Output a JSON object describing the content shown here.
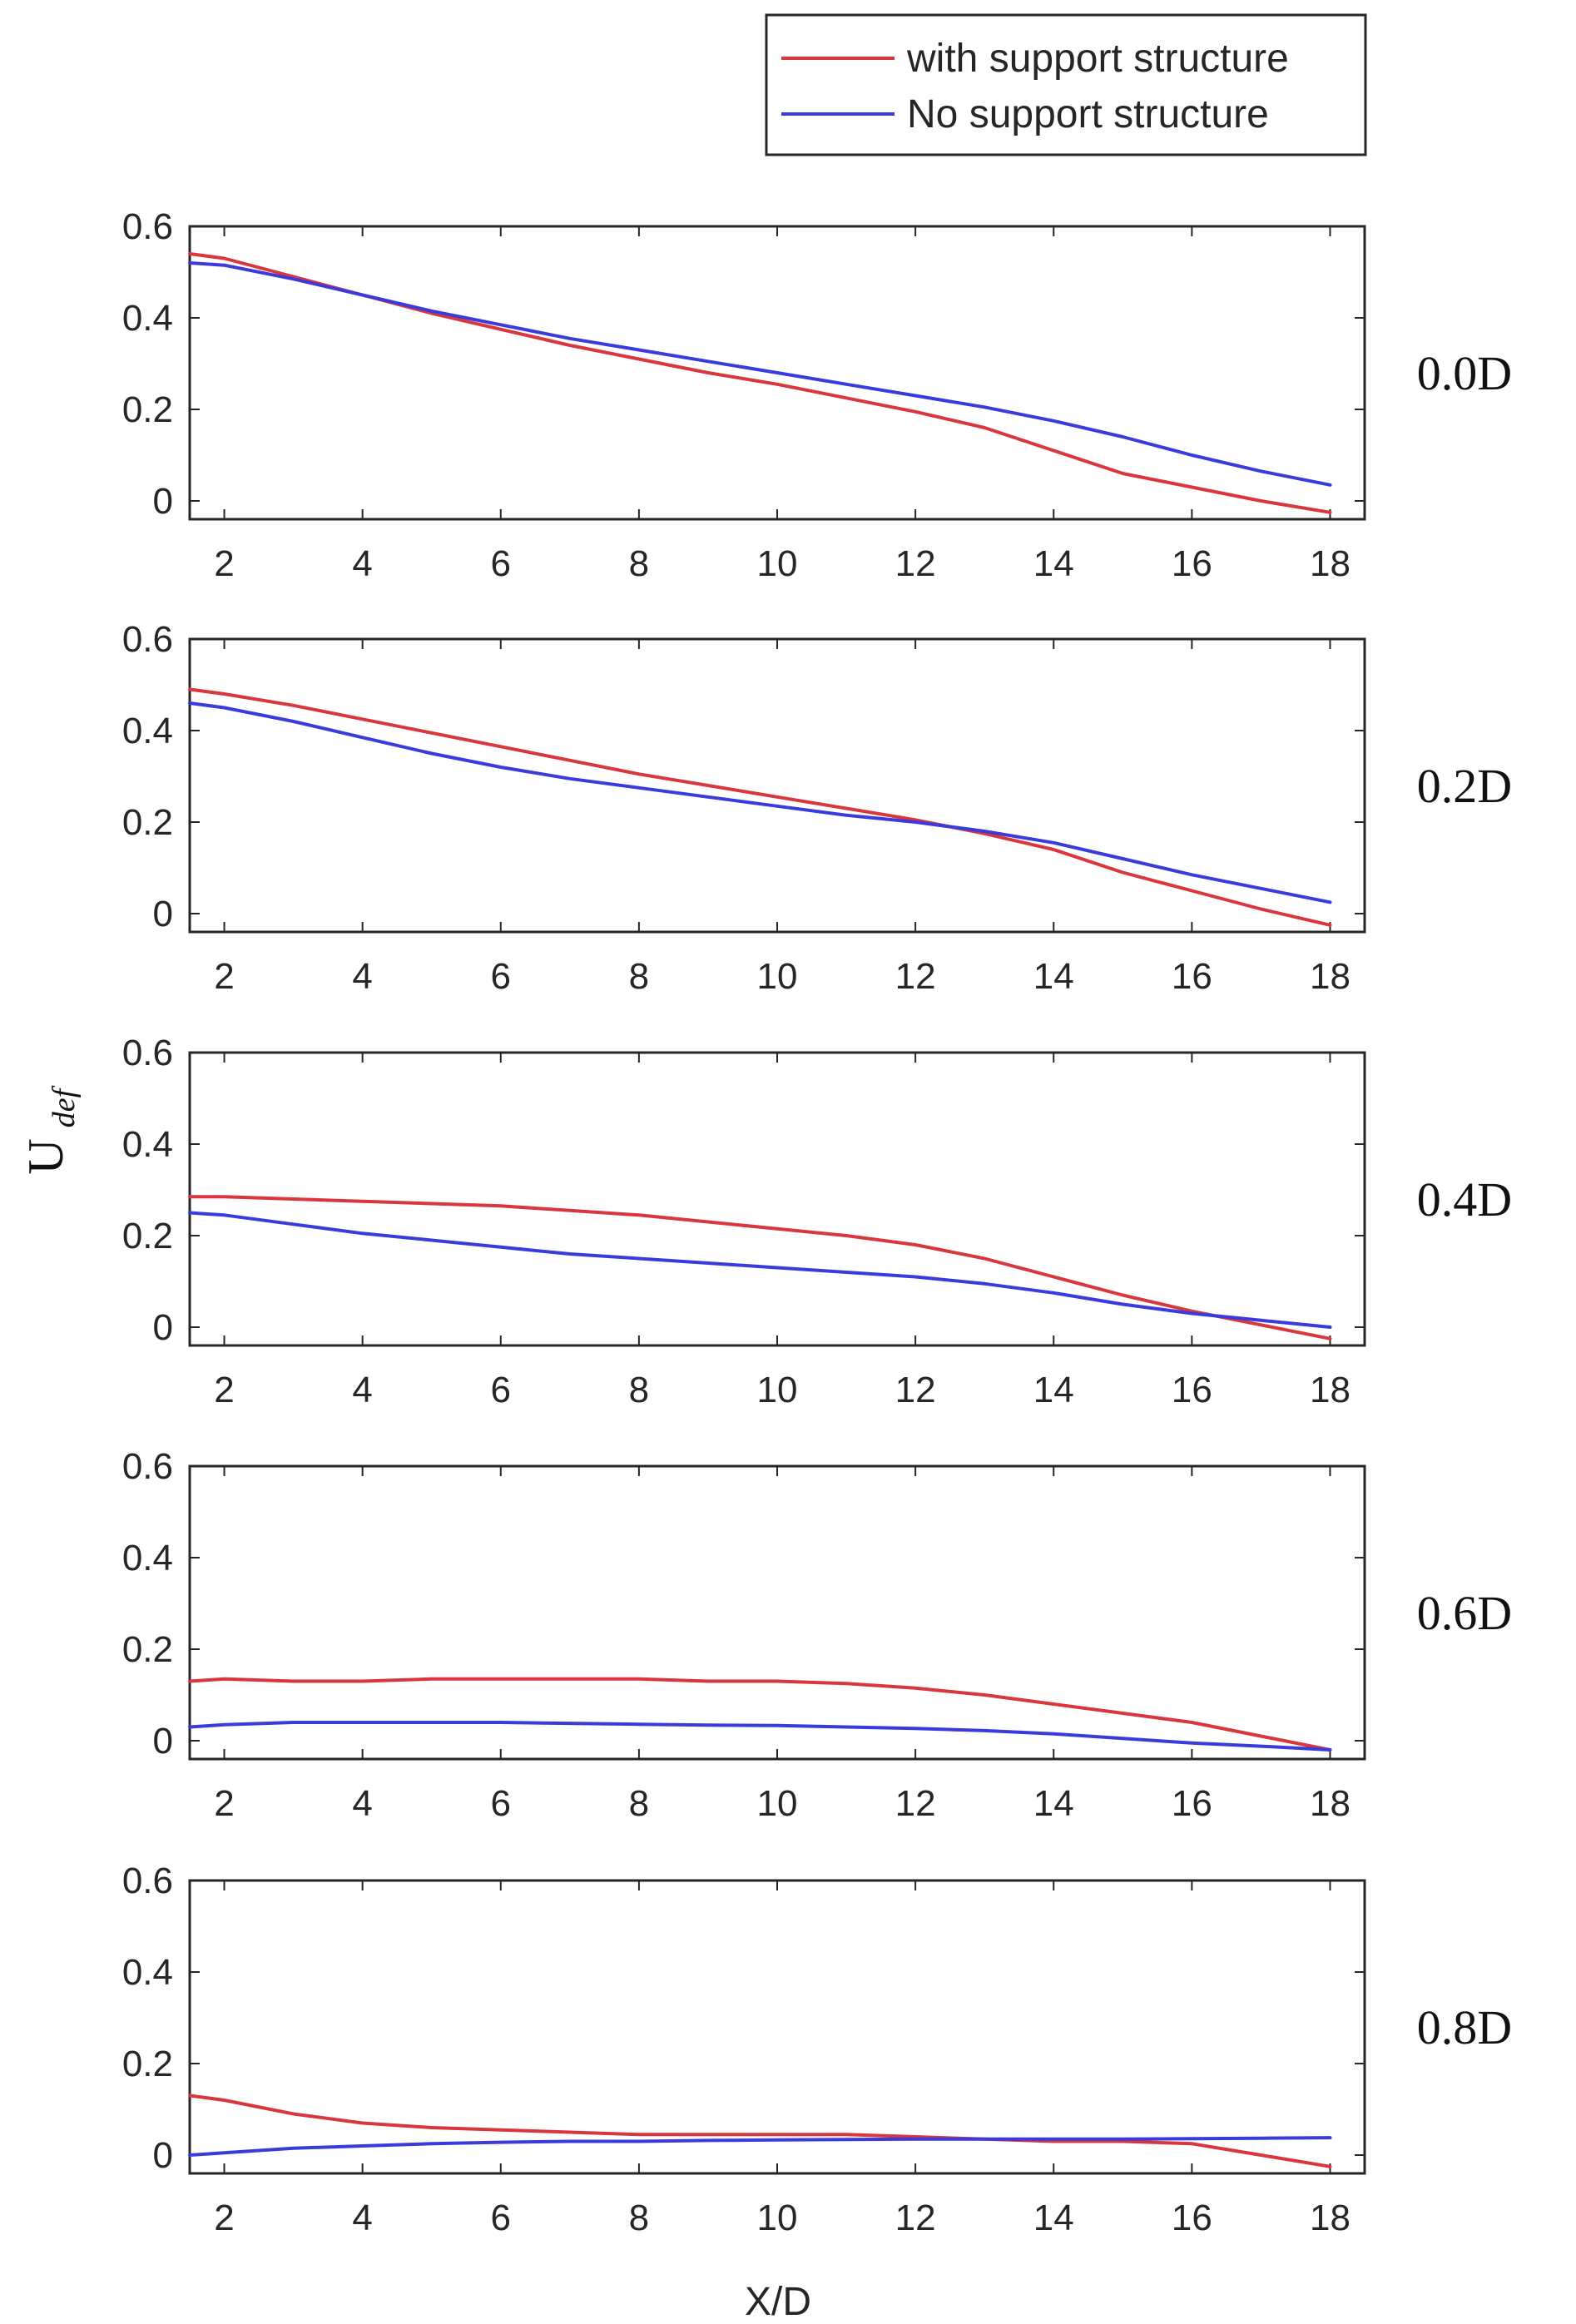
{
  "chart_data": {
    "type": "line",
    "ylabel": "U",
    "ylabel_subscript": "def",
    "xlabel": "X/D",
    "xlim": [
      1.5,
      18.5
    ],
    "ylim": [
      -0.04,
      0.6
    ],
    "xticks": [
      2,
      4,
      6,
      8,
      10,
      12,
      14,
      16,
      18
    ],
    "yticks": [
      0,
      0.2,
      0.4,
      0.6
    ],
    "xtick_labels": [
      "2",
      "4",
      "6",
      "8",
      "10",
      "12",
      "14",
      "16",
      "18"
    ],
    "ytick_labels": [
      "0",
      "0.2",
      "0.4",
      "0.6"
    ],
    "legend": {
      "position": "top-right",
      "entries": [
        {
          "label": "with support structure",
          "color": "#d9363e"
        },
        {
          "label": "No support structure",
          "color": "#3b3bdd"
        }
      ]
    },
    "colors": {
      "with": "#d9363e",
      "without": "#3b3bdd",
      "axis": "#262626"
    },
    "x": [
      1.5,
      2,
      3,
      4,
      5,
      6,
      7,
      8,
      9,
      10,
      11,
      12,
      13,
      14,
      15,
      16,
      17,
      18
    ],
    "panels": [
      {
        "label": "0.0D",
        "series": [
          {
            "name": "with support structure",
            "values": [
              0.54,
              0.53,
              0.49,
              0.45,
              0.41,
              0.375,
              0.34,
              0.31,
              0.28,
              0.255,
              0.225,
              0.195,
              0.16,
              0.11,
              0.06,
              0.03,
              0.0,
              -0.025
            ]
          },
          {
            "name": "No support structure",
            "values": [
              0.52,
              0.515,
              0.485,
              0.45,
              0.415,
              0.385,
              0.355,
              0.33,
              0.305,
              0.28,
              0.255,
              0.23,
              0.205,
              0.175,
              0.14,
              0.1,
              0.065,
              0.035
            ]
          }
        ]
      },
      {
        "label": "0.2D",
        "series": [
          {
            "name": "with support structure",
            "values": [
              0.49,
              0.48,
              0.455,
              0.425,
              0.395,
              0.365,
              0.335,
              0.305,
              0.28,
              0.255,
              0.23,
              0.205,
              0.175,
              0.14,
              0.09,
              0.05,
              0.01,
              -0.025
            ]
          },
          {
            "name": "No support structure",
            "values": [
              0.46,
              0.45,
              0.42,
              0.385,
              0.35,
              0.32,
              0.295,
              0.275,
              0.255,
              0.235,
              0.215,
              0.2,
              0.18,
              0.155,
              0.12,
              0.085,
              0.055,
              0.025
            ]
          }
        ]
      },
      {
        "label": "0.4D",
        "series": [
          {
            "name": "with support structure",
            "values": [
              0.285,
              0.285,
              0.28,
              0.275,
              0.27,
              0.265,
              0.255,
              0.245,
              0.23,
              0.215,
              0.2,
              0.18,
              0.15,
              0.11,
              0.07,
              0.035,
              0.005,
              -0.025
            ]
          },
          {
            "name": "No support structure",
            "values": [
              0.25,
              0.245,
              0.225,
              0.205,
              0.19,
              0.175,
              0.16,
              0.15,
              0.14,
              0.13,
              0.12,
              0.11,
              0.095,
              0.075,
              0.05,
              0.03,
              0.015,
              0.0
            ]
          }
        ]
      },
      {
        "label": "0.6D",
        "series": [
          {
            "name": "with support structure",
            "values": [
              0.13,
              0.135,
              0.13,
              0.13,
              0.135,
              0.135,
              0.135,
              0.135,
              0.13,
              0.13,
              0.125,
              0.115,
              0.1,
              0.08,
              0.06,
              0.04,
              0.01,
              -0.02
            ]
          },
          {
            "name": "No support structure",
            "values": [
              0.03,
              0.035,
              0.04,
              0.04,
              0.04,
              0.04,
              0.038,
              0.036,
              0.034,
              0.033,
              0.03,
              0.027,
              0.022,
              0.015,
              0.005,
              -0.005,
              -0.012,
              -0.02
            ]
          }
        ]
      },
      {
        "label": "0.8D",
        "series": [
          {
            "name": "with support structure",
            "values": [
              0.13,
              0.12,
              0.09,
              0.07,
              0.06,
              0.055,
              0.05,
              0.045,
              0.045,
              0.045,
              0.045,
              0.04,
              0.035,
              0.03,
              0.03,
              0.025,
              0.0,
              -0.025
            ]
          },
          {
            "name": "No support structure",
            "values": [
              0.0,
              0.005,
              0.015,
              0.02,
              0.025,
              0.028,
              0.03,
              0.03,
              0.032,
              0.033,
              0.034,
              0.035,
              0.035,
              0.035,
              0.035,
              0.036,
              0.037,
              0.038
            ]
          }
        ]
      }
    ]
  }
}
